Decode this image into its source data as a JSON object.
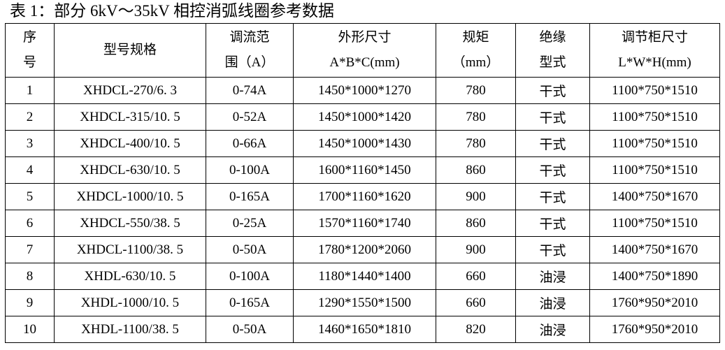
{
  "title": "表 1：部分 6kV～35kV 相控消弧线圈参考数据",
  "colors": {
    "text": "#000000",
    "border": "#000000",
    "background": "#ffffff"
  },
  "table": {
    "headers": [
      [
        "序",
        "号"
      ],
      [
        "型号规格"
      ],
      [
        "调流范",
        "围（A）"
      ],
      [
        "外形尺寸",
        "A*B*C(mm)"
      ],
      [
        "规矩",
        "（mm）"
      ],
      [
        "绝缘",
        "型式"
      ],
      [
        "调节柜尺寸",
        "L*W*H(mm)"
      ]
    ],
    "rows": [
      [
        "1",
        "XHDCL-270/6. 3",
        "0-74A",
        "1450*1000*1270",
        "780",
        "干式",
        "1100*750*1510"
      ],
      [
        "2",
        "XHDCL-315/10. 5",
        "0-52A",
        "1450*1000*1420",
        "780",
        "干式",
        "1100*750*1510"
      ],
      [
        "3",
        "XHDCL-400/10. 5",
        "0-66A",
        "1450*1000*1430",
        "780",
        "干式",
        "1100*750*1510"
      ],
      [
        "4",
        "XHDCL-630/10. 5",
        "0-100A",
        "1600*1160*1450",
        "860",
        "干式",
        "1100*750*1510"
      ],
      [
        "5",
        "XHDCL-1000/10. 5",
        "0-165A",
        "1700*1160*1620",
        "900",
        "干式",
        "1400*750*1670"
      ],
      [
        "6",
        "XHDCL-550/38. 5",
        "0-25A",
        "1570*1160*1740",
        "860",
        "干式",
        "1100*750*1510"
      ],
      [
        "7",
        "XHDCL-1100/38. 5",
        "0-50A",
        "1780*1200*2060",
        "900",
        "干式",
        "1400*750*1670"
      ],
      [
        "8",
        "XHDL-630/10. 5",
        "0-100A",
        "1180*1440*1400",
        "660",
        "油浸",
        "1400*750*1890"
      ],
      [
        "9",
        "XHDL-1000/10. 5",
        "0-165A",
        "1290*1550*1500",
        "660",
        "油浸",
        "1760*950*2010"
      ],
      [
        "10",
        "XHDL-1100/38. 5",
        "0-50A",
        "1460*1650*1810",
        "820",
        "油浸",
        "1760*950*2010"
      ]
    ]
  }
}
